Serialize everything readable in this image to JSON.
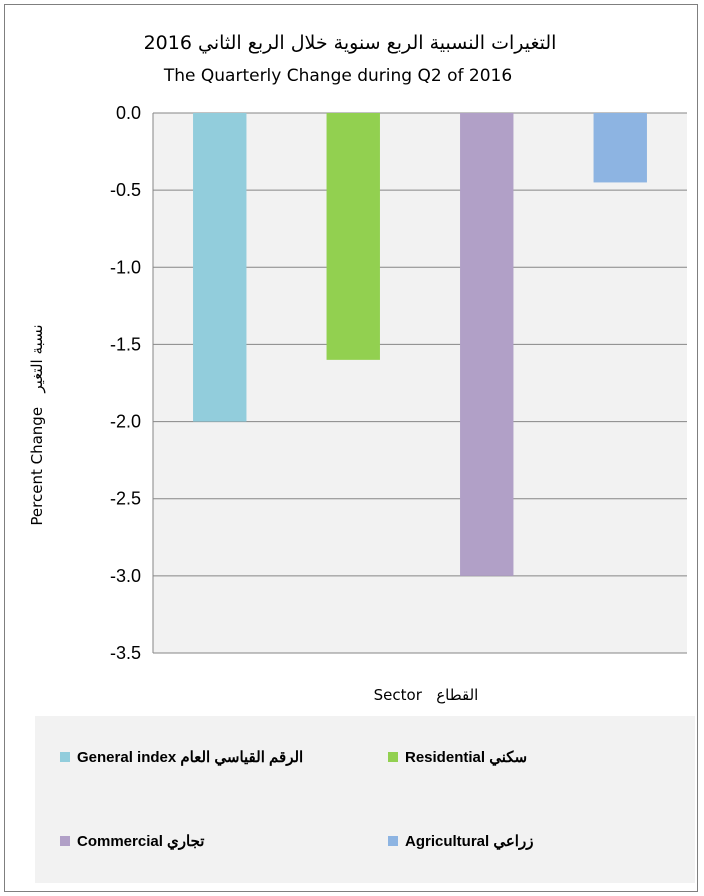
{
  "chart_data": {
    "type": "bar",
    "title": "التغيرات النسبية الربع سنوية خلال الربع الثاني 2016",
    "subtitle": "The Quarterly Change during Q2 of 2016",
    "xlabel": "Sector   القطاع",
    "ylabel": "Percent Change   نسبة التغير",
    "ylim": [
      -3.5,
      0.0
    ],
    "yticks": [
      "0.0",
      "-0.5",
      "-1.0",
      "-1.5",
      "-2.0",
      "-2.5",
      "-3.0",
      "-3.5"
    ],
    "grid": true,
    "legend_position": "bottom",
    "series": [
      {
        "name": "General index الرقم القياسي العام",
        "value": -2.0,
        "color": "#92CDDC"
      },
      {
        "name": "Residential سكني",
        "value": -1.6,
        "color": "#92D050"
      },
      {
        "name": "Commercial تجاري",
        "value": -3.0,
        "color": "#B1A0C7"
      },
      {
        "name": "Agricultural  زراعي",
        "value": -0.45,
        "color": "#8DB4E2"
      }
    ]
  }
}
